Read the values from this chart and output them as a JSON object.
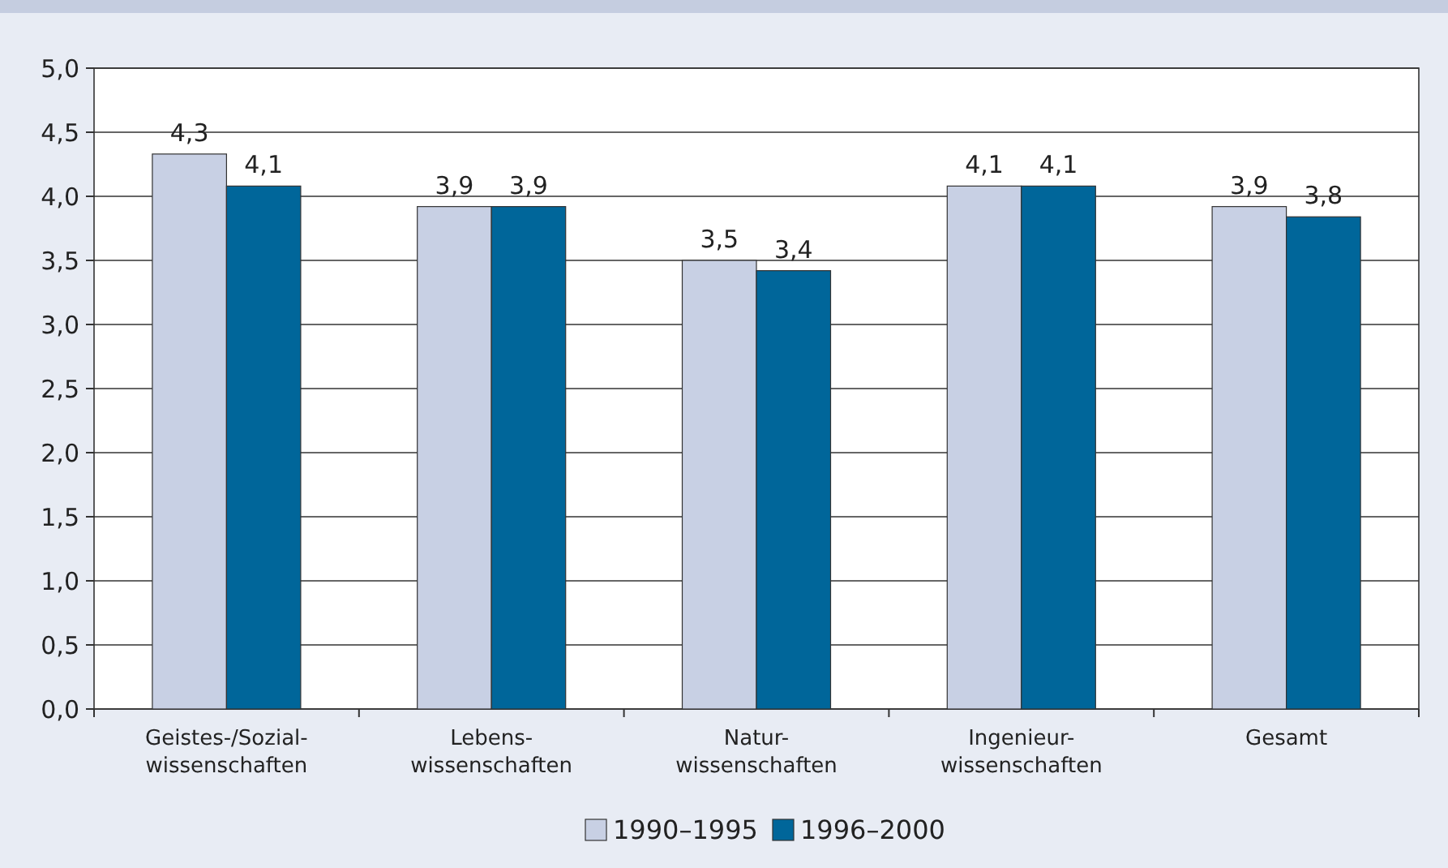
{
  "chart_data": {
    "type": "bar",
    "categories": [
      "Geistes-/Sozial-\nwissenschaften",
      "Lebens-\nwissenschaften",
      "Natur-\nwissenschaften",
      "Ingenieur-\nwissenschaften",
      "Gesamt"
    ],
    "series": [
      {
        "name": "1990–1995",
        "color": "#c8d0e4",
        "values": [
          4.33,
          3.92,
          3.5,
          4.08,
          3.92
        ],
        "value_labels": [
          "4,3",
          "3,9",
          "3,5",
          "4,1",
          "3,9"
        ]
      },
      {
        "name": "1996–2000",
        "color": "#00669a",
        "values": [
          4.08,
          3.92,
          3.42,
          4.08,
          3.84
        ],
        "value_labels": [
          "4,1",
          "3,9",
          "3,4",
          "4,1",
          "3,8"
        ]
      }
    ],
    "ylim": [
      0,
      5
    ],
    "yticks": [
      {
        "value": 0,
        "label": "0,0"
      },
      {
        "value": 0.5,
        "label": "0,5"
      },
      {
        "value": 1,
        "label": "1,0"
      },
      {
        "value": 1.5,
        "label": "1,5"
      },
      {
        "value": 2,
        "label": "2,0"
      },
      {
        "value": 2.5,
        "label": "2,5"
      },
      {
        "value": 3,
        "label": "3,0"
      },
      {
        "value": 3.5,
        "label": "3,5"
      },
      {
        "value": 4,
        "label": "4,0"
      },
      {
        "value": 4.5,
        "label": "4,5"
      },
      {
        "value": 5,
        "label": "5,0"
      }
    ],
    "grid": "y",
    "legend": "bottom"
  }
}
